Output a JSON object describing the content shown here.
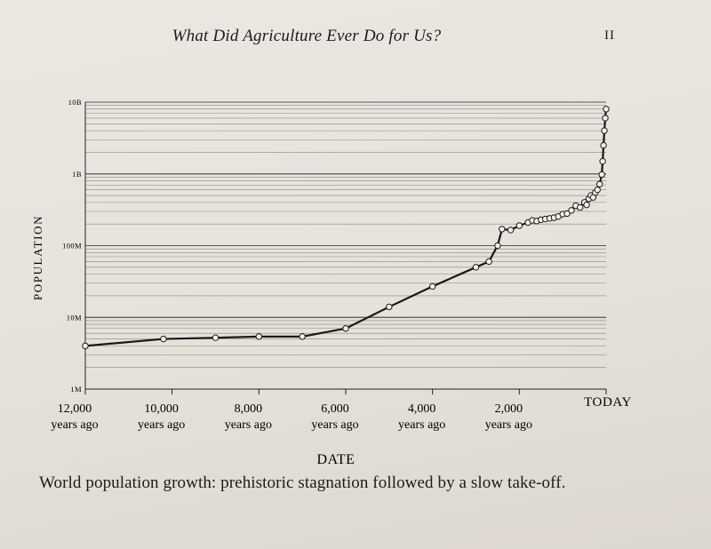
{
  "running_head": "What Did Agriculture Ever Do for Us?",
  "page_number": "II",
  "caption": "World population growth: prehistoric stagnation followed by a slow take-off.",
  "chart_data": {
    "type": "line",
    "title": "",
    "xlabel": "DATE",
    "ylabel": "POPULATION",
    "y_scale": "log",
    "ylim": [
      1000000,
      10000000000
    ],
    "xlim": [
      -12000,
      0
    ],
    "y_ticks": [
      {
        "value": 1000000,
        "label": "1M"
      },
      {
        "value": 10000000,
        "label": "10M"
      },
      {
        "value": 100000000,
        "label": "100M"
      },
      {
        "value": 1000000000,
        "label": "1B"
      },
      {
        "value": 10000000000,
        "label": "10B"
      }
    ],
    "x_ticks": [
      {
        "value": -12000,
        "label": [
          "12,000",
          "years ago"
        ]
      },
      {
        "value": -10000,
        "label": [
          "10,000",
          "years ago"
        ]
      },
      {
        "value": -8000,
        "label": [
          "8,000",
          "years ago"
        ]
      },
      {
        "value": -6000,
        "label": [
          "6,000",
          "years ago"
        ]
      },
      {
        "value": -4000,
        "label": [
          "4,000",
          "years ago"
        ]
      },
      {
        "value": -2000,
        "label": [
          "2,000",
          "years ago"
        ]
      },
      {
        "value": 0,
        "label": [
          "TODAY"
        ]
      }
    ],
    "grid": "horizontal log minor lines",
    "series": [
      {
        "x": [
          -12000,
          -10200,
          -9000,
          -8000,
          -7000,
          -6000,
          -5000,
          -4000,
          -3000,
          -2700,
          -2500,
          -2400,
          -2200,
          -2000,
          -1800,
          -1700,
          -1600,
          -1500,
          -1400,
          -1300,
          -1200,
          -1100,
          -1000,
          -900,
          -800,
          -700,
          -600,
          -500,
          -450,
          -400,
          -350,
          -300,
          -250,
          -200,
          -150,
          -100,
          -80,
          -60,
          -40,
          -20,
          0
        ],
        "y": [
          4000000,
          5000000,
          5200000,
          5400000,
          5400000,
          7000000,
          14000000,
          27000000,
          50000000,
          60000000,
          100000000,
          170000000,
          165000000,
          190000000,
          210000000,
          225000000,
          220000000,
          230000000,
          235000000,
          240000000,
          245000000,
          255000000,
          275000000,
          280000000,
          310000000,
          360000000,
          340000000,
          400000000,
          370000000,
          450000000,
          500000000,
          470000000,
          550000000,
          600000000,
          720000000,
          980000000,
          1500000000,
          2500000000,
          4000000000,
          6000000000,
          8000000000
        ]
      }
    ]
  }
}
